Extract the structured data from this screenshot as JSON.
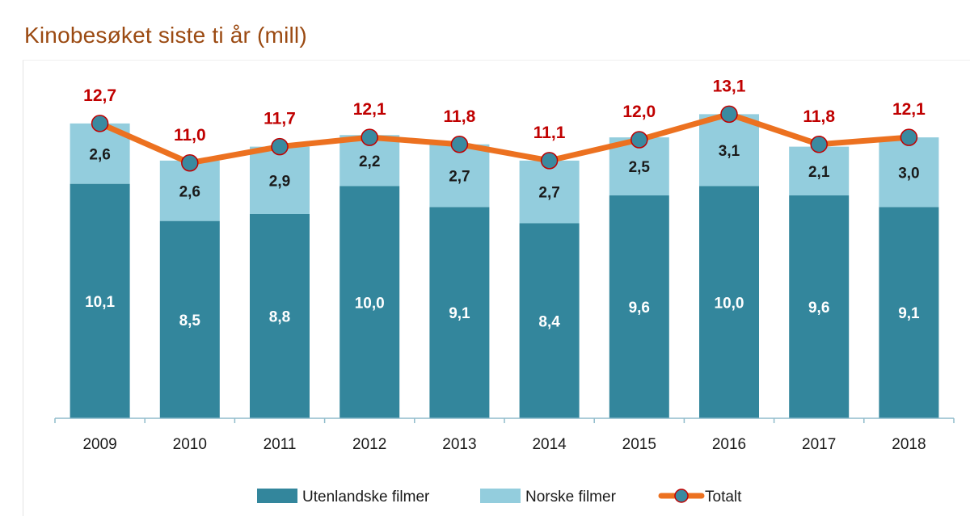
{
  "title": "Kinobesøket siste ti år (mill)",
  "colors": {
    "foreign": "#33869c",
    "norwegian": "#93cddd",
    "total_line": "#ec7120",
    "total_marker_fill": "#3a8aa0",
    "total_marker_stroke": "#c00000",
    "total_label": "#c00000",
    "title": "#9b4a12"
  },
  "chart_data": {
    "type": "bar",
    "stacked": true,
    "categories": [
      "2009",
      "2010",
      "2011",
      "2012",
      "2013",
      "2014",
      "2015",
      "2016",
      "2017",
      "2018"
    ],
    "series": [
      {
        "name": "Utenlandske filmer",
        "values": [
          10.1,
          8.5,
          8.8,
          10.0,
          9.1,
          8.4,
          9.6,
          10.0,
          9.6,
          9.1
        ],
        "labels": [
          "10,1",
          "8,5",
          "8,8",
          "10,0",
          "9,1",
          "8,4",
          "9,6",
          "10,0",
          "9,6",
          "9,1"
        ]
      },
      {
        "name": "Norske filmer",
        "values": [
          2.6,
          2.6,
          2.9,
          2.2,
          2.7,
          2.7,
          2.5,
          3.1,
          2.1,
          3.0
        ],
        "labels": [
          "2,6",
          "2,6",
          "2,9",
          "2,2",
          "2,7",
          "2,7",
          "2,5",
          "3,1",
          "2,1",
          "3,0"
        ]
      }
    ],
    "line_series": {
      "name": "Totalt",
      "values": [
        12.7,
        11.0,
        11.7,
        12.1,
        11.8,
        11.1,
        12.0,
        13.1,
        11.8,
        12.1
      ],
      "labels": [
        "12,7",
        "11,0",
        "11,7",
        "12,1",
        "11,8",
        "11,1",
        "12,0",
        "13,1",
        "11,8",
        "12,1"
      ]
    },
    "ylim": [
      0,
      13.8
    ],
    "grid": false,
    "legend_position": "bottom"
  }
}
